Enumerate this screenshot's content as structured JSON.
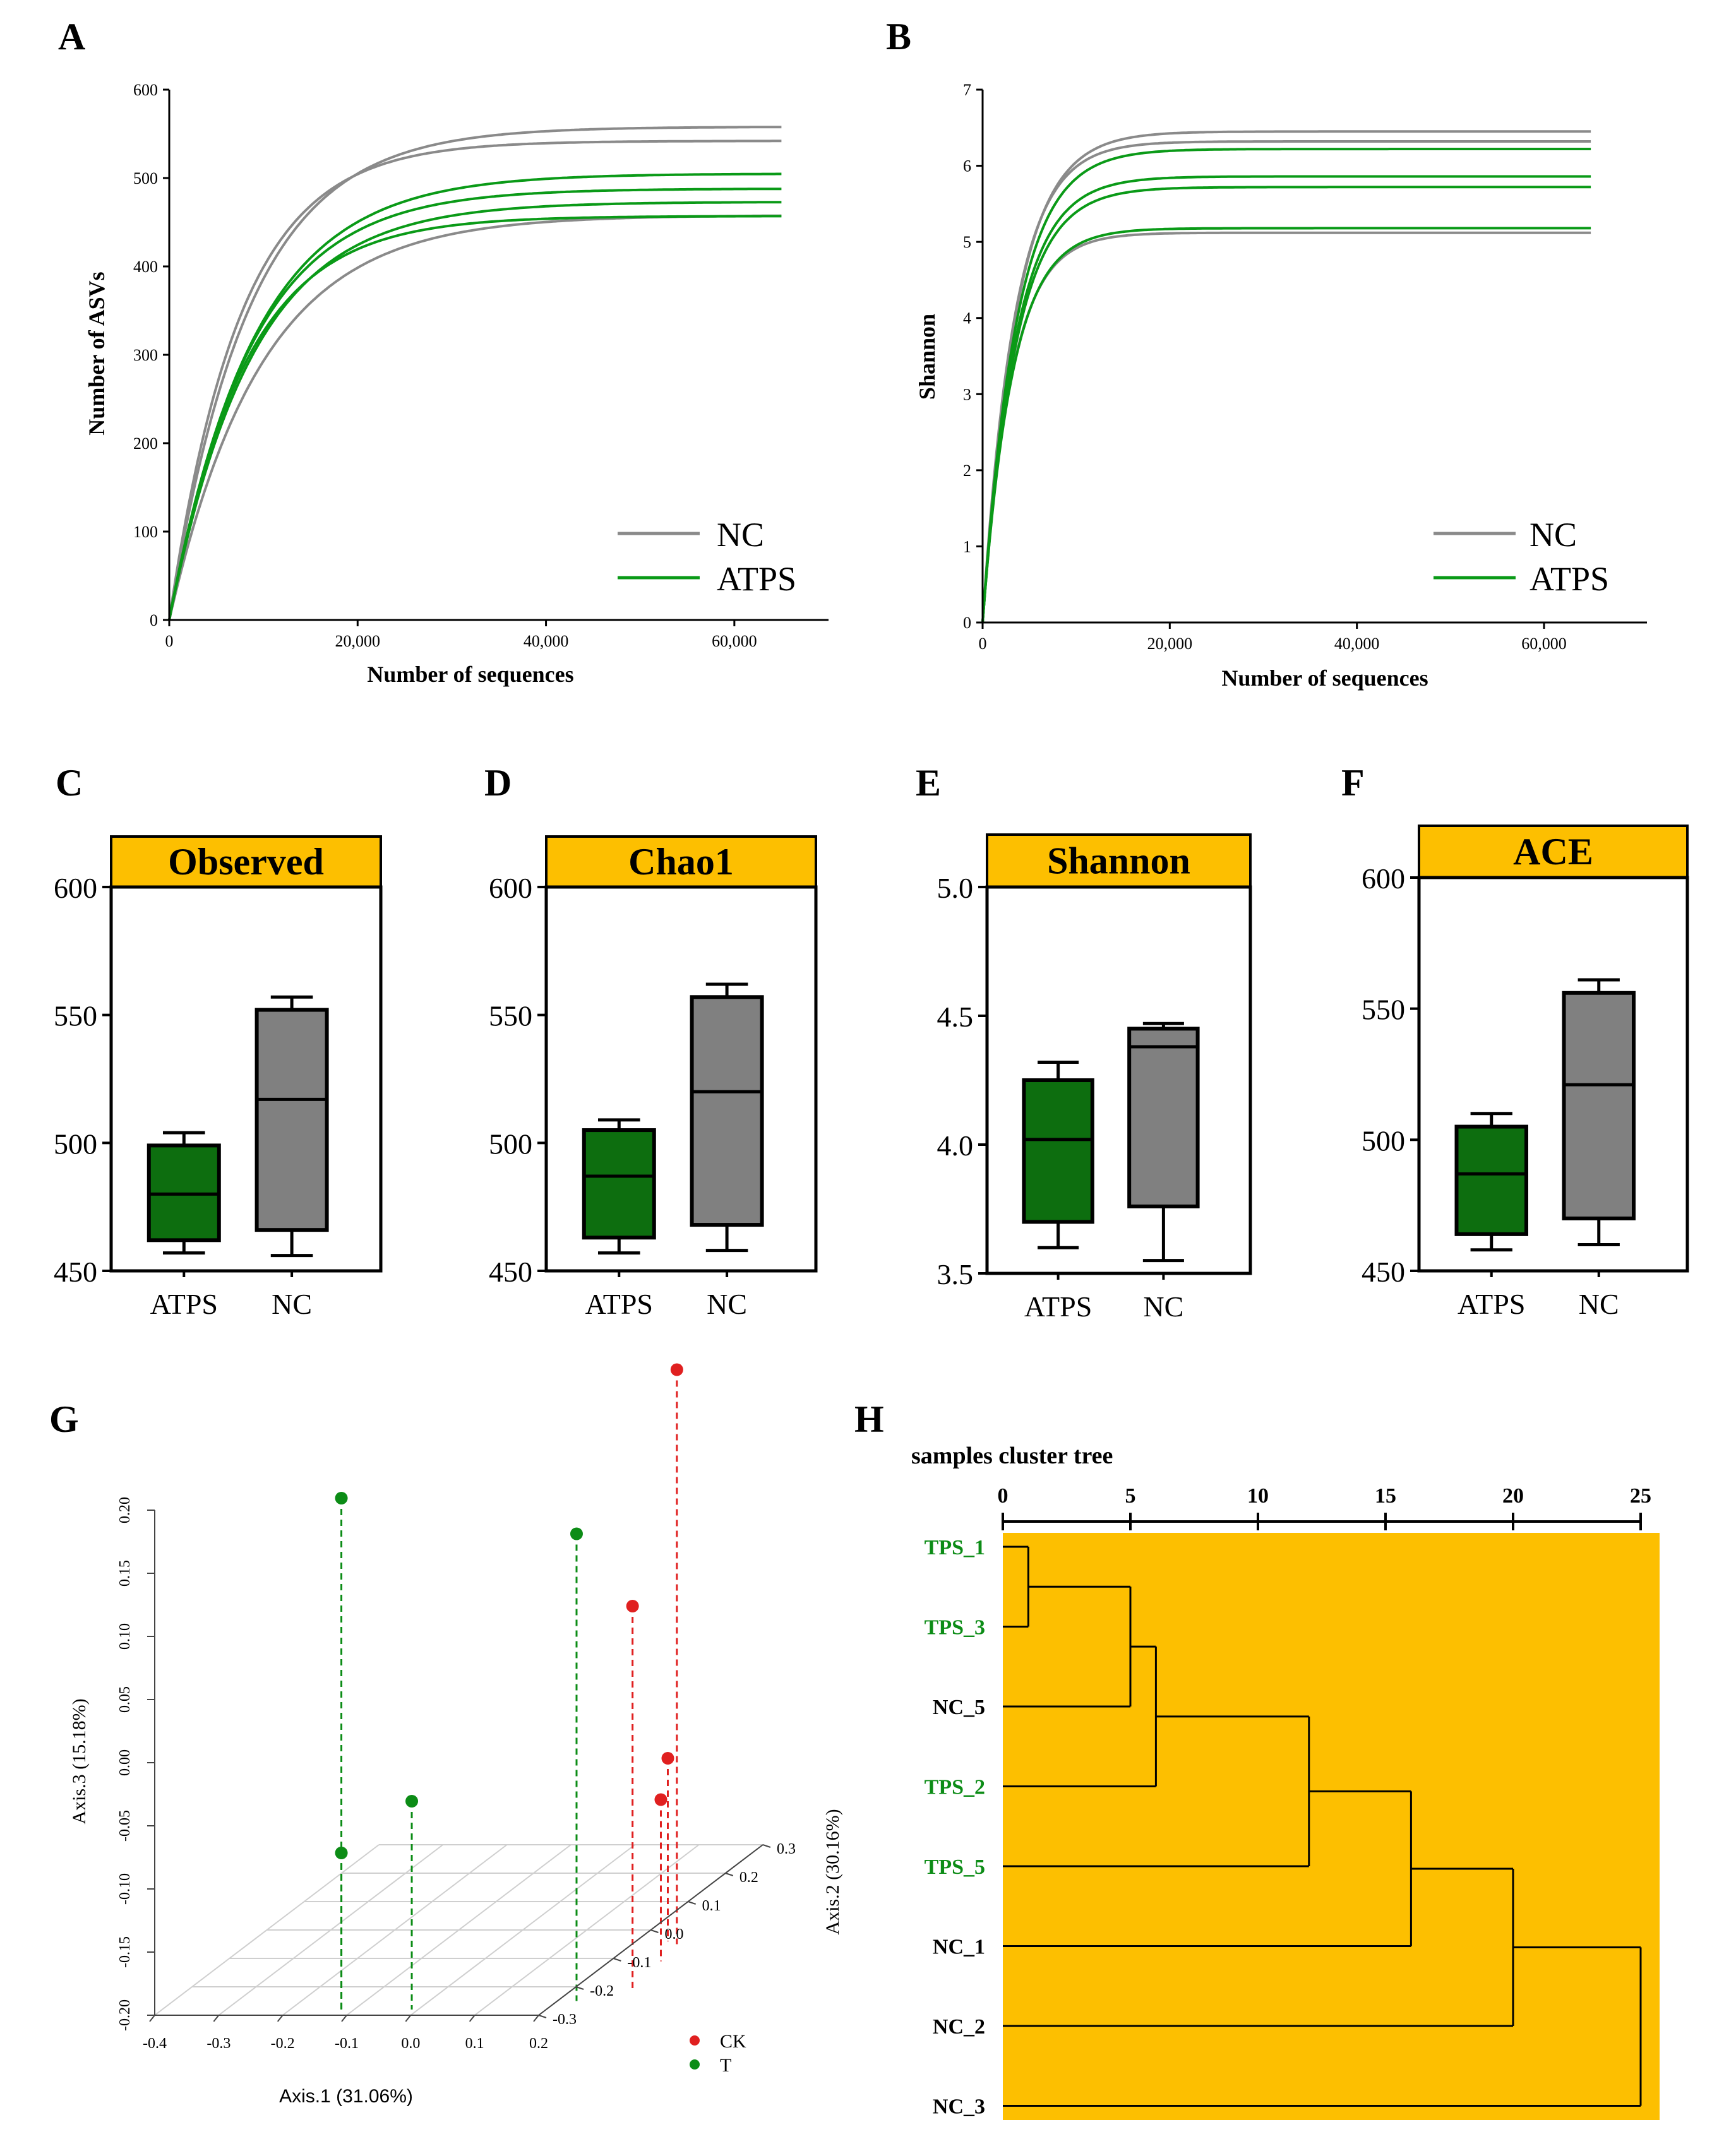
{
  "figure": {
    "panel_letters": [
      "A",
      "B",
      "C",
      "D",
      "E",
      "F",
      "G",
      "H"
    ]
  },
  "colors": {
    "nc": "#8a8a8a",
    "atps": "#0a9a17",
    "box_atps": "#0d6e0f",
    "box_nc": "#808080",
    "title_bar": "#fdbf00",
    "tree_bg": "#fdbf00",
    "ck": "#e02020",
    "t": "#0c8c16"
  },
  "chart_data": [
    {
      "panel": "A",
      "type": "line",
      "xlabel": "Number of sequences",
      "ylabel": "Number of ASVs",
      "xlim": [
        0,
        70000
      ],
      "ylim": [
        0,
        600
      ],
      "xticks": [
        0,
        20000,
        40000,
        60000
      ],
      "xtick_labels": [
        "0",
        "20,000",
        "40,000",
        "60,000"
      ],
      "yticks": [
        0,
        100,
        200,
        300,
        400,
        500,
        600
      ],
      "ytick_labels": [
        "0",
        "100",
        "200",
        "300",
        "400",
        "500",
        "600"
      ],
      "legend": [
        "NC",
        "ATPS"
      ],
      "legend_position": "bottom-right",
      "x_end": 65000,
      "series": [
        {
          "name": "NC",
          "plateau": 558,
          "k": 8500
        },
        {
          "name": "NC",
          "plateau": 542,
          "k": 7500
        },
        {
          "name": "NC",
          "plateau": 458,
          "k": 9800
        },
        {
          "name": "ATPS",
          "plateau": 505,
          "k": 9000
        },
        {
          "name": "ATPS",
          "plateau": 488,
          "k": 8600
        },
        {
          "name": "ATPS",
          "plateau": 473,
          "k": 8800
        },
        {
          "name": "ATPS",
          "plateau": 457,
          "k": 8000
        }
      ]
    },
    {
      "panel": "B",
      "type": "line",
      "xlabel": "Number of sequences",
      "ylabel": "Shannon",
      "xlim": [
        0,
        71000
      ],
      "ylim": [
        0,
        7
      ],
      "xticks": [
        0,
        20000,
        40000,
        60000
      ],
      "xtick_labels": [
        "0",
        "20,000",
        "40,000",
        "60,000"
      ],
      "yticks": [
        0,
        1,
        2,
        3,
        4,
        5,
        6,
        7
      ],
      "ytick_labels": [
        "0",
        "1",
        "2",
        "3",
        "4",
        "5",
        "6",
        "7"
      ],
      "legend": [
        "NC",
        "ATPS"
      ],
      "legend_position": "bottom-right",
      "x_end": 65000,
      "series": [
        {
          "name": "NC",
          "plateau": 6.45,
          "k": 3600
        },
        {
          "name": "NC",
          "plateau": 6.32,
          "k": 3400
        },
        {
          "name": "NC",
          "plateau": 5.12,
          "k": 3100
        },
        {
          "name": "ATPS",
          "plateau": 6.22,
          "k": 3600
        },
        {
          "name": "ATPS",
          "plateau": 5.86,
          "k": 3500
        },
        {
          "name": "ATPS",
          "plateau": 5.72,
          "k": 3500
        },
        {
          "name": "ATPS",
          "plateau": 5.18,
          "k": 3200
        }
      ]
    },
    {
      "panel": "C",
      "type": "box",
      "title": "Observed",
      "ylim": [
        450,
        600
      ],
      "yticks": [
        450,
        500,
        550,
        600
      ],
      "categories": [
        "ATPS",
        "NC"
      ],
      "boxes": [
        {
          "name": "ATPS",
          "min": 457,
          "q1": 462,
          "median": 480,
          "q3": 499,
          "max": 504
        },
        {
          "name": "NC",
          "min": 456,
          "q1": 466,
          "median": 517,
          "q3": 552,
          "max": 557
        }
      ]
    },
    {
      "panel": "D",
      "type": "box",
      "title": "Chao1",
      "ylim": [
        450,
        600
      ],
      "yticks": [
        450,
        500,
        550,
        600
      ],
      "categories": [
        "ATPS",
        "NC"
      ],
      "boxes": [
        {
          "name": "ATPS",
          "min": 457,
          "q1": 463,
          "median": 487,
          "q3": 505,
          "max": 509
        },
        {
          "name": "NC",
          "min": 458,
          "q1": 468,
          "median": 520,
          "q3": 557,
          "max": 562
        }
      ]
    },
    {
      "panel": "E",
      "type": "box",
      "title": "Shannon",
      "ylim": [
        3.5,
        5.0
      ],
      "yticks": [
        3.5,
        4.0,
        4.5,
        5.0
      ],
      "ytick_labels": [
        "3.5",
        "4.0",
        "4.5",
        "5.0"
      ],
      "categories": [
        "ATPS",
        "NC"
      ],
      "boxes": [
        {
          "name": "ATPS",
          "min": 3.6,
          "q1": 3.7,
          "median": 4.02,
          "q3": 4.25,
          "max": 4.32
        },
        {
          "name": "NC",
          "min": 3.55,
          "q1": 3.76,
          "median": 4.38,
          "q3": 4.45,
          "max": 4.47
        }
      ]
    },
    {
      "panel": "F",
      "type": "box",
      "title": "ACE",
      "ylim": [
        450,
        600
      ],
      "yticks": [
        450,
        500,
        550,
        600
      ],
      "categories": [
        "ATPS",
        "NC"
      ],
      "boxes": [
        {
          "name": "ATPS",
          "min": 458,
          "q1": 464,
          "median": 487,
          "q3": 505,
          "max": 510
        },
        {
          "name": "NC",
          "min": 460,
          "q1": 470,
          "median": 521,
          "q3": 556,
          "max": 561
        }
      ]
    },
    {
      "panel": "G",
      "type": "scatter",
      "subtype": "3d-pcoa",
      "xlabel": "Axis.1 (31.06%)",
      "ylabel": "Axis.2 (30.16%)",
      "zlabel": "Axis.3 (15.18%)",
      "xticks": [
        "-0.4",
        "-0.3",
        "-0.2",
        "-0.1",
        "0.0",
        "0.1",
        "0.2"
      ],
      "yticks": [
        "-0.3",
        "-0.2",
        "-0.1",
        "0.0",
        "0.1",
        "0.2",
        "0.3"
      ],
      "zticks": [
        "-0.20",
        "-0.15",
        "-0.10",
        "-0.05",
        "0.00",
        "0.05",
        "0.10",
        "0.15",
        "0.20"
      ],
      "legend": [
        "CK",
        "T"
      ],
      "legend_position": "bottom-right",
      "points": [
        {
          "group": "T",
          "x": -0.12,
          "y": -0.28,
          "z": 0.205
        },
        {
          "group": "T",
          "x": -0.12,
          "y": -0.28,
          "z": -0.076
        },
        {
          "group": "T",
          "x": -0.01,
          "y": -0.28,
          "z": -0.035
        },
        {
          "group": "T",
          "x": 0.23,
          "y": -0.25,
          "z": 0.17
        },
        {
          "group": "CK",
          "x": 0.27,
          "y": -0.05,
          "z": 0.255
        },
        {
          "group": "CK",
          "x": 0.3,
          "y": -0.22,
          "z": 0.106
        },
        {
          "group": "CK",
          "x": 0.25,
          "y": -0.04,
          "z": -0.055
        },
        {
          "group": "CK",
          "x": 0.28,
          "y": -0.11,
          "z": -0.072
        }
      ]
    },
    {
      "panel": "H",
      "type": "dendrogram",
      "title": "samples cluster tree",
      "xlim": [
        0,
        25
      ],
      "xticks": [
        0,
        5,
        10,
        15,
        20,
        25
      ],
      "leaves": [
        {
          "label": "TPS_1",
          "group": "T"
        },
        {
          "label": "TPS_3",
          "group": "T"
        },
        {
          "label": "NC_5",
          "group": "NC"
        },
        {
          "label": "TPS_2",
          "group": "T"
        },
        {
          "label": "TPS_5",
          "group": "T"
        },
        {
          "label": "NC_1",
          "group": "NC"
        },
        {
          "label": "NC_2",
          "group": "NC"
        },
        {
          "label": "NC_3",
          "group": "NC"
        }
      ],
      "merges": [
        {
          "a": 0,
          "b": 1,
          "height": 1
        },
        {
          "a": 8,
          "b": 2,
          "height": 5
        },
        {
          "a": 9,
          "b": 3,
          "height": 6
        },
        {
          "a": 10,
          "b": 4,
          "height": 12
        },
        {
          "a": 11,
          "b": 5,
          "height": 16
        },
        {
          "a": 12,
          "b": 6,
          "height": 20
        },
        {
          "a": 13,
          "b": 7,
          "height": 25
        }
      ]
    }
  ]
}
